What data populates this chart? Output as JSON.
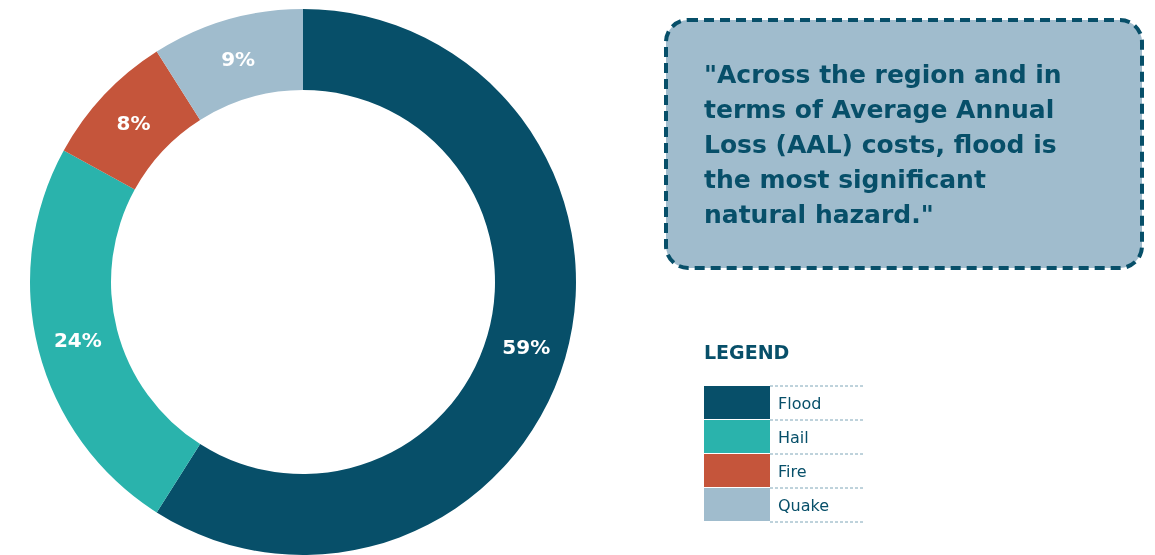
{
  "chart_data": {
    "type": "donut",
    "categories": [
      "Flood",
      "Hail",
      "Fire",
      "Quake"
    ],
    "values": [
      59,
      24,
      8,
      9
    ],
    "value_labels": [
      "59%",
      "24%",
      "8%",
      "9%"
    ],
    "colors": [
      "#074f69",
      "#2ab3ac",
      "#c5553b",
      "#a0bccd"
    ],
    "legend": "right",
    "legend_title": "LEGEND",
    "annotations": [
      "\"Across the region and in terms of Average Annual Loss (AAL) costs, flood is the most significant natural hazard.\""
    ]
  }
}
